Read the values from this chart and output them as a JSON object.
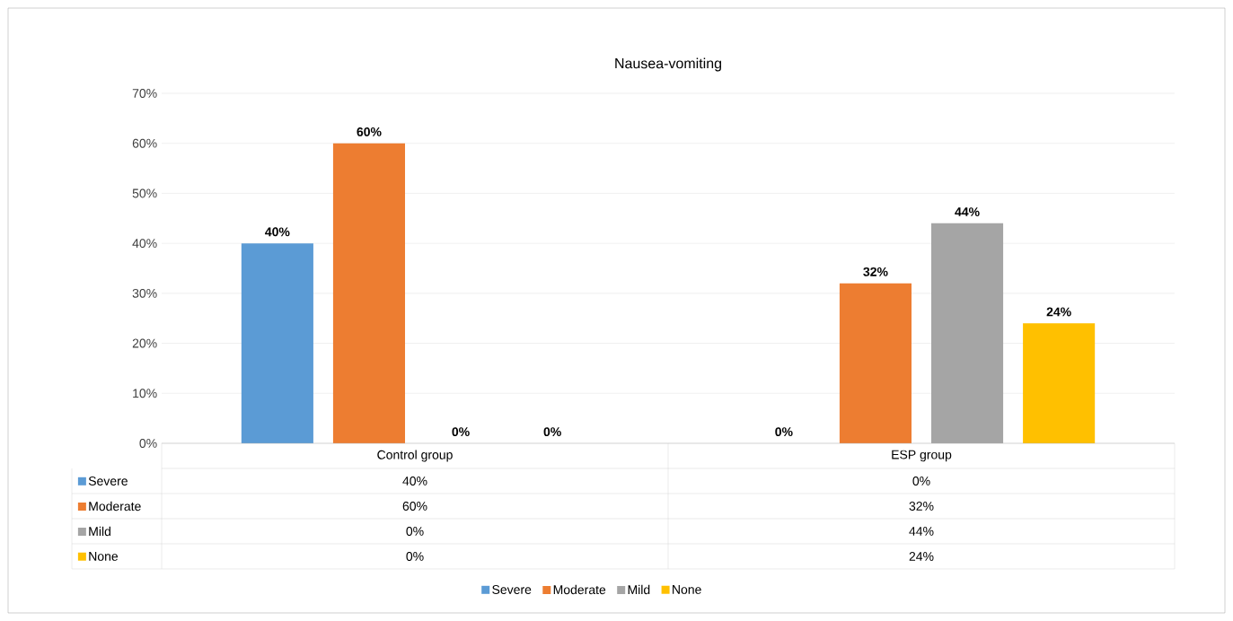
{
  "chart_data": {
    "type": "bar",
    "title": "Nausea-vomiting",
    "categories": [
      "Control group",
      "ESP group"
    ],
    "series": [
      {
        "name": "Severe",
        "color": "#5b9bd5",
        "values": [
          40,
          0
        ],
        "value_labels": [
          "40%",
          "0%"
        ]
      },
      {
        "name": "Moderate",
        "color": "#ed7d31",
        "values": [
          60,
          32
        ],
        "value_labels": [
          "60%",
          "32%"
        ]
      },
      {
        "name": "Mild",
        "color": "#a5a5a5",
        "values": [
          0,
          44
        ],
        "value_labels": [
          "0%",
          "44%"
        ]
      },
      {
        "name": "None",
        "color": "#ffc000",
        "values": [
          0,
          24
        ],
        "value_labels": [
          "0%",
          "24%"
        ]
      }
    ],
    "ylim": [
      0,
      70
    ],
    "yticks": [
      {
        "value": 0,
        "label": "0%"
      },
      {
        "value": 10,
        "label": "10%"
      },
      {
        "value": 20,
        "label": "20%"
      },
      {
        "value": 30,
        "label": "30%"
      },
      {
        "value": 40,
        "label": "40%"
      },
      {
        "value": 50,
        "label": "50%"
      },
      {
        "value": 60,
        "label": "60%"
      },
      {
        "value": 70,
        "label": "70%"
      }
    ],
    "grid": "y",
    "legend": "bottom"
  }
}
